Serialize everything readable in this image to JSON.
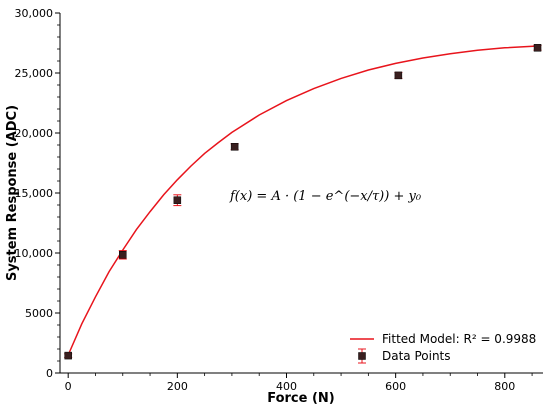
{
  "chart_data": {
    "type": "scatter",
    "xlabel": "Force (N)",
    "ylabel": "System Response (ADC)",
    "xlim": [
      -15,
      870
    ],
    "ylim": [
      0,
      30000
    ],
    "x_ticks": [
      0,
      200,
      400,
      600,
      800
    ],
    "x_tick_labels": [
      "0",
      "200",
      "400",
      "600",
      "800"
    ],
    "y_ticks": [
      0,
      5000,
      10000,
      15000,
      20000,
      25000,
      30000
    ],
    "y_tick_labels": [
      "0",
      "5000",
      "10,000",
      "15,000",
      "20,000",
      "25,000",
      "30,000"
    ],
    "grid": false,
    "legend_position": "bottom-right",
    "annotation": "f(x) = A · (1 − e^(−x/τ)) + y₀",
    "series": [
      {
        "name": "Fitted Model: R² = 0.9988",
        "kind": "line",
        "color": "#e8141c",
        "x": [
          0,
          25,
          50,
          75,
          100,
          125,
          150,
          175,
          200,
          225,
          250,
          275,
          300,
          350,
          400,
          450,
          500,
          550,
          600,
          650,
          700,
          750,
          800,
          860
        ],
        "y": [
          1500,
          4100,
          6350,
          8450,
          10250,
          11950,
          13450,
          14850,
          16100,
          17250,
          18300,
          19200,
          20050,
          21500,
          22700,
          23700,
          24550,
          25250,
          25800,
          26250,
          26600,
          26900,
          27100,
          27250
        ]
      },
      {
        "name": "Data Points",
        "kind": "points",
        "color": "#3a1f1f",
        "x": [
          0,
          100,
          200,
          305,
          605,
          860
        ],
        "y": [
          1450,
          9850,
          14400,
          18850,
          24800,
          27100
        ],
        "y_err": [
          150,
          350,
          450,
          250,
          250,
          200
        ]
      }
    ]
  }
}
